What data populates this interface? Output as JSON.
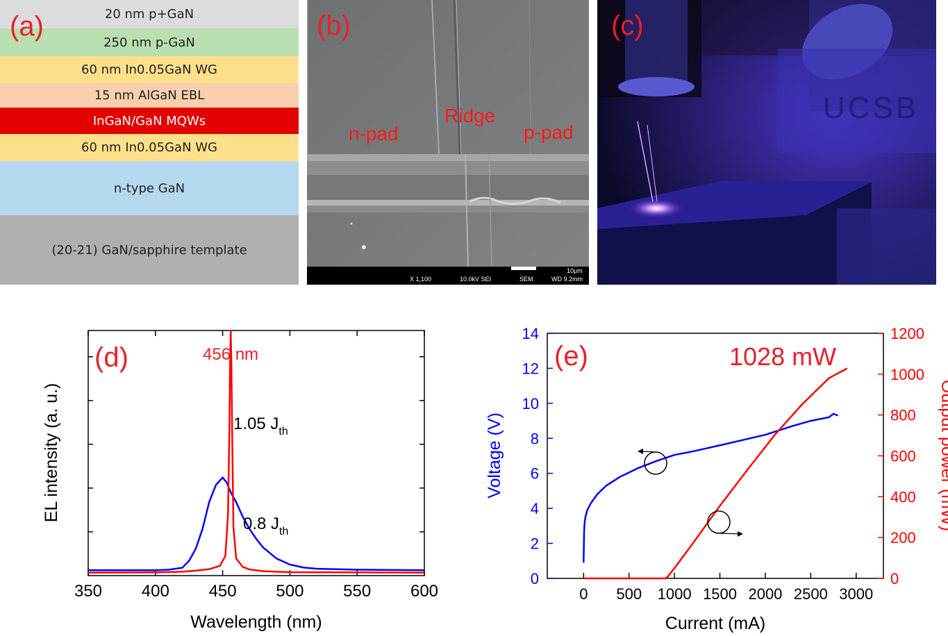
{
  "panel_a": {
    "label": "(a)",
    "layers": [
      {
        "text": "20 nm p+GaN",
        "color": "#dcdcdc"
      },
      {
        "text": "250 nm p-GaN",
        "color": "#b9dfb1"
      },
      {
        "text": "60 nm In0.05GaN WG",
        "color": "#fde089"
      },
      {
        "text": "15 nm AlGaN EBL",
        "color": "#fbcfae"
      },
      {
        "text": "InGaN/GaN MQWs",
        "color": "#e20000"
      },
      {
        "text": "60 nm In0.05GaN WG",
        "color": "#fde089"
      },
      {
        "text": "n-type GaN",
        "color": "#b4d8ee"
      },
      {
        "text": "(20-21) GaN/sapphire template",
        "color": "#b1aeae"
      }
    ]
  },
  "panel_b": {
    "label": "(b)",
    "n_pad": "n-pad",
    "ridge": "Ridge",
    "p_pad": "p-pad",
    "sem_bar": {
      "magnification": "X 1,100",
      "voltage": "10.0kV SEI",
      "mode": "SEM",
      "wd": "WD 9.2mm",
      "scale": "10μm"
    }
  },
  "panel_c": {
    "label": "(c)",
    "logo_text": "UCSB"
  },
  "chart_data": [
    {
      "type": "line",
      "label": "(d)",
      "xlabel": "Wavelength (nm)",
      "ylabel": "EL intensity (a. u.)",
      "xlim": [
        350,
        600
      ],
      "ylim": [
        0,
        1
      ],
      "xticks": [
        350,
        400,
        450,
        500,
        550,
        600
      ],
      "yticks": [],
      "peak_annotation": "456 nm",
      "series": [
        {
          "name": "1.05 J",
          "sub": "th",
          "color": "#ff0000",
          "x": [
            350,
            400,
            420,
            430,
            440,
            448,
            452,
            454,
            455,
            455.5,
            456,
            456.5,
            457,
            458,
            460,
            465,
            470,
            480,
            500,
            550,
            600
          ],
          "y": [
            0.012,
            0.013,
            0.016,
            0.02,
            0.026,
            0.04,
            0.08,
            0.25,
            0.6,
            0.85,
            1.0,
            0.85,
            0.6,
            0.2,
            0.07,
            0.035,
            0.025,
            0.018,
            0.014,
            0.013,
            0.012
          ]
        },
        {
          "name": "0.8 J",
          "sub": "th",
          "color": "#0000ff",
          "x": [
            350,
            400,
            410,
            420,
            425,
            430,
            435,
            440,
            445,
            450,
            453,
            456,
            460,
            465,
            470,
            475,
            480,
            490,
            500,
            510,
            520,
            550,
            600
          ],
          "y": [
            0.022,
            0.022,
            0.024,
            0.032,
            0.06,
            0.11,
            0.19,
            0.3,
            0.37,
            0.4,
            0.38,
            0.34,
            0.3,
            0.24,
            0.19,
            0.15,
            0.115,
            0.07,
            0.045,
            0.033,
            0.028,
            0.024,
            0.022
          ]
        }
      ]
    },
    {
      "type": "line",
      "label": "(e)",
      "xlabel": "Current (mA)",
      "ylabel_left": "Voltage (V)",
      "ylabel_right": "Output power (mW)",
      "xlim": [
        -400,
        3300
      ],
      "xticks": [
        0,
        500,
        1000,
        1500,
        2000,
        2500,
        3000
      ],
      "ylim_left": [
        0,
        14
      ],
      "yticks_left": [
        0,
        2,
        4,
        6,
        8,
        10,
        12,
        14
      ],
      "ylim_right": [
        0,
        1200
      ],
      "yticks_right": [
        0,
        200,
        400,
        600,
        800,
        1000,
        1200
      ],
      "annotation": "1028 mW",
      "series": [
        {
          "name": "",
          "axis": "left",
          "color": "#0000ff",
          "x": [
            0,
            5,
            10,
            20,
            40,
            80,
            150,
            250,
            400,
            600,
            800,
            1000,
            1200,
            1500,
            2000,
            2300,
            2500,
            2700,
            2750,
            2800
          ],
          "y": [
            0.9,
            2.6,
            3.1,
            3.5,
            3.9,
            4.3,
            4.8,
            5.3,
            5.8,
            6.3,
            6.7,
            7.05,
            7.25,
            7.6,
            8.2,
            8.7,
            9.0,
            9.2,
            9.4,
            9.3
          ]
        },
        {
          "name": "",
          "axis": "right",
          "color": "#ff0000",
          "x": [
            0,
            500,
            900,
            920,
            1000,
            1200,
            1500,
            1800,
            2100,
            2400,
            2700,
            2900
          ],
          "y": [
            0,
            0,
            0,
            5,
            50,
            170,
            355,
            530,
            700,
            850,
            980,
            1028
          ]
        }
      ]
    }
  ]
}
